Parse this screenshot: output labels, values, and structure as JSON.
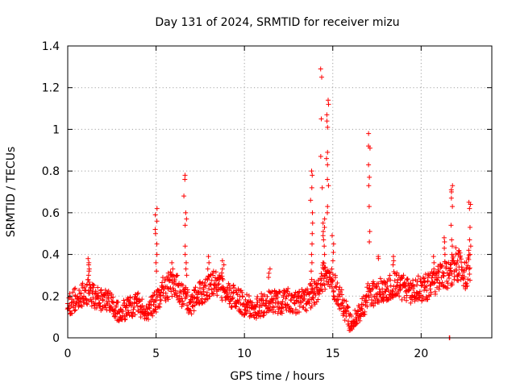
{
  "chart_data": {
    "type": "scatter",
    "title": "Day 131 of 2024, SRMTID for receiver mizu",
    "xlabel": "GPS time / hours",
    "ylabel": "SRMTID / TECUs",
    "xlim": [
      0,
      24
    ],
    "ylim": [
      0,
      1.4
    ],
    "xticks": [
      0,
      5,
      10,
      15,
      20
    ],
    "xtick_labels": [
      "0",
      "5",
      "10",
      "15",
      "20"
    ],
    "yticks": [
      0,
      0.2,
      0.4,
      0.6,
      0.8,
      1.0,
      1.2,
      1.4
    ],
    "ytick_labels": [
      "0",
      "0.2",
      "0.4",
      "0.6",
      "0.8",
      "1",
      "1.2",
      "1.4"
    ],
    "grid": true,
    "marker": "plus",
    "color": "#ff0000",
    "series": [
      {
        "name": "SRMTID",
        "sample_spacing_hours": 0.05,
        "baseline_profile": [
          [
            0,
            0.16
          ],
          [
            0.6,
            0.19
          ],
          [
            1.2,
            0.22
          ],
          [
            1.8,
            0.19
          ],
          [
            2.5,
            0.16
          ],
          [
            3.0,
            0.12
          ],
          [
            3.5,
            0.15
          ],
          [
            4.0,
            0.16
          ],
          [
            4.5,
            0.12
          ],
          [
            5.0,
            0.18
          ],
          [
            5.5,
            0.24
          ],
          [
            6.0,
            0.26
          ],
          [
            6.5,
            0.2
          ],
          [
            7.0,
            0.16
          ],
          [
            7.5,
            0.22
          ],
          [
            8.0,
            0.25
          ],
          [
            8.5,
            0.27
          ],
          [
            9.0,
            0.22
          ],
          [
            9.5,
            0.19
          ],
          [
            10.0,
            0.16
          ],
          [
            10.5,
            0.14
          ],
          [
            11.0,
            0.16
          ],
          [
            11.5,
            0.17
          ],
          [
            12.0,
            0.17
          ],
          [
            12.5,
            0.18
          ],
          [
            13.0,
            0.17
          ],
          [
            13.5,
            0.18
          ],
          [
            14.0,
            0.22
          ],
          [
            14.5,
            0.3
          ],
          [
            15.0,
            0.26
          ],
          [
            15.5,
            0.18
          ],
          [
            16.0,
            0.07
          ],
          [
            16.5,
            0.12
          ],
          [
            17.0,
            0.2
          ],
          [
            17.5,
            0.22
          ],
          [
            18.0,
            0.23
          ],
          [
            18.5,
            0.26
          ],
          [
            19.0,
            0.24
          ],
          [
            19.5,
            0.22
          ],
          [
            20.0,
            0.24
          ],
          [
            20.5,
            0.25
          ],
          [
            21.0,
            0.28
          ],
          [
            21.5,
            0.3
          ],
          [
            22.0,
            0.36
          ],
          [
            22.5,
            0.3
          ],
          [
            22.8,
            0.34
          ]
        ],
        "bursts": [
          {
            "t": 1.2,
            "values": [
              0.3,
              0.33,
              0.36,
              0.38,
              0.35,
              0.32
            ]
          },
          {
            "t": 5.0,
            "values": [
              0.62,
              0.59,
              0.56,
              0.52,
              0.5,
              0.45,
              0.4,
              0.36,
              0.32
            ]
          },
          {
            "t": 5.9,
            "values": [
              0.36,
              0.33,
              0.3
            ]
          },
          {
            "t": 6.6,
            "values": [
              0.78,
              0.76,
              0.68
            ]
          },
          {
            "t": 6.7,
            "values": [
              0.6,
              0.57,
              0.54,
              0.44,
              0.4,
              0.36,
              0.33,
              0.3
            ]
          },
          {
            "t": 7.95,
            "values": [
              0.39,
              0.36,
              0.33
            ]
          },
          {
            "t": 8.8,
            "values": [
              0.37,
              0.35,
              0.33
            ]
          },
          {
            "t": 11.4,
            "values": [
              0.33,
              0.31,
              0.29
            ]
          },
          {
            "t": 13.8,
            "values": [
              0.8,
              0.78,
              0.72,
              0.66,
              0.6,
              0.55,
              0.5,
              0.45,
              0.4,
              0.36,
              0.32,
              0.28,
              0.25
            ]
          },
          {
            "t": 14.35,
            "values": [
              1.29,
              1.25,
              1.05,
              0.87,
              0.72
            ]
          },
          {
            "t": 14.5,
            "values": [
              0.57,
              0.55,
              0.53,
              0.51,
              0.49,
              0.47,
              0.44,
              0.4,
              0.36,
              0.33,
              0.3
            ]
          },
          {
            "t": 14.7,
            "values": [
              1.14,
              1.12,
              1.07,
              1.04,
              1.01,
              0.89,
              0.86,
              0.83,
              0.76,
              0.73,
              0.63,
              0.6
            ]
          },
          {
            "t": 15.0,
            "values": [
              0.49,
              0.45,
              0.41,
              0.37,
              0.33
            ]
          },
          {
            "t": 17.05,
            "values": [
              0.98,
              0.92,
              0.91,
              0.83,
              0.77,
              0.73,
              0.63,
              0.51,
              0.46
            ]
          },
          {
            "t": 17.6,
            "values": [
              0.39,
              0.38
            ]
          },
          {
            "t": 18.4,
            "values": [
              0.39,
              0.37,
              0.35
            ]
          },
          {
            "t": 20.7,
            "values": [
              0.39,
              0.36,
              0.33
            ]
          },
          {
            "t": 21.3,
            "values": [
              0.48,
              0.46,
              0.43,
              0.4
            ]
          },
          {
            "t": 21.6,
            "values": [
              0.0,
              0.0
            ]
          },
          {
            "t": 21.75,
            "values": [
              0.73,
              0.71,
              0.7,
              0.67,
              0.63,
              0.54,
              0.47,
              0.44,
              0.4,
              0.37
            ]
          },
          {
            "t": 22.1,
            "values": [
              0.4,
              0.37,
              0.34
            ]
          },
          {
            "t": 22.75,
            "values": [
              0.65,
              0.64,
              0.62,
              0.53,
              0.47,
              0.44,
              0.42,
              0.4
            ]
          }
        ]
      }
    ]
  }
}
